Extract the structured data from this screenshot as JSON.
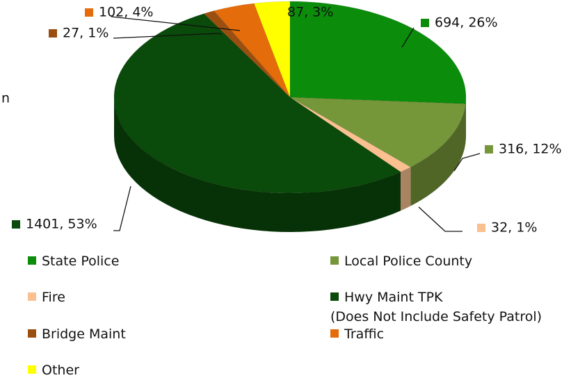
{
  "chart_data": {
    "type": "pie3d",
    "title": "n",
    "categories": [
      "State Police",
      "Local Police County",
      "Fire",
      "Hwy Maint TPK\n(Does Not Include Safety Patrol)",
      "Bridge Maint",
      "Traffic",
      "Other"
    ],
    "values": [
      694,
      316,
      32,
      1401,
      27,
      102,
      87
    ],
    "value_labels": [
      "694, 26%",
      "316, 12%",
      "32, 1%",
      "1401, 53%",
      "27, 1%",
      "102, 4%",
      "87, 3%"
    ],
    "colors": [
      "#0b8c0b",
      "#76963a",
      "#fac090",
      "#0a4a0a",
      "#9a4f10",
      "#e46c0a",
      "#ffff00"
    ],
    "legend": "bottom"
  }
}
